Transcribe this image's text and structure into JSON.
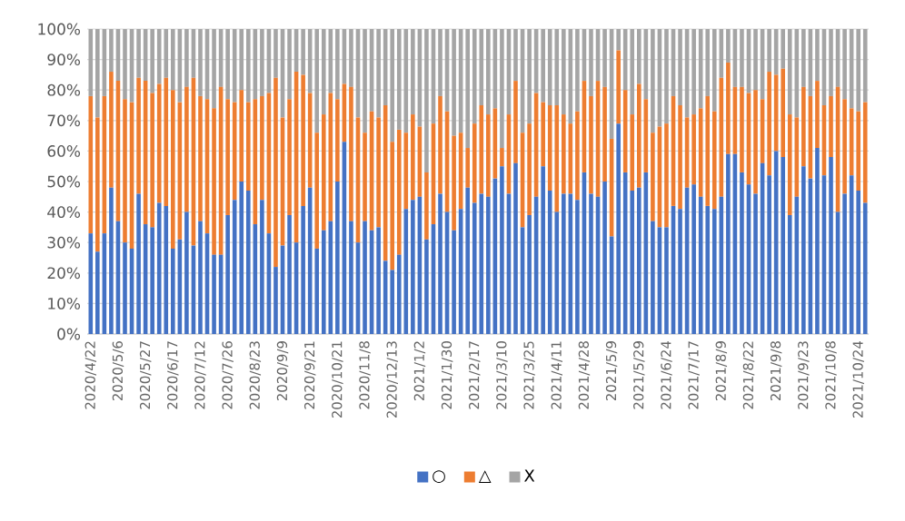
{
  "chart_data": {
    "type": "bar",
    "stacked": true,
    "grid": "y",
    "legend": "bottom",
    "categories": [
      "2020/4/22",
      null,
      null,
      null,
      "2020/5/6",
      null,
      null,
      null,
      "2020/5/27",
      null,
      null,
      null,
      "2020/6/17",
      null,
      null,
      null,
      "2020/7/12",
      null,
      null,
      null,
      "2020/7/26",
      null,
      null,
      null,
      "2020/8/23",
      null,
      null,
      null,
      "2020/9/9",
      null,
      null,
      null,
      "2020/9/21",
      null,
      null,
      null,
      "2020/10/21",
      null,
      null,
      null,
      "2020/11/8",
      null,
      null,
      null,
      "2020/12/13",
      null,
      null,
      null,
      "2021/1/2",
      null,
      null,
      null,
      "2021/1/30",
      null,
      null,
      null,
      "2021/2/17",
      null,
      null,
      null,
      "2021/3/10",
      null,
      null,
      null,
      "2021/3/25",
      null,
      null,
      null,
      "2021/4/11",
      null,
      null,
      null,
      "2021/4/28",
      null,
      null,
      null,
      "2021/5/9",
      null,
      null,
      null,
      "2021/5/29",
      null,
      null,
      null,
      "2021/6/24",
      null,
      null,
      null,
      "2021/7/17",
      null,
      null,
      null,
      "2021/8/9",
      null,
      null,
      null,
      "2021/8/22",
      null,
      null,
      null,
      "2021/9/8",
      null,
      null,
      null,
      "2021/9/23",
      null,
      null,
      null,
      "2021/10/8",
      null,
      null,
      null,
      "2021/10/24",
      null
    ],
    "ylim": [
      0,
      100
    ],
    "yticks": [
      {
        "value": 0,
        "label": "0%"
      },
      {
        "value": 10,
        "label": "10%"
      },
      {
        "value": 20,
        "label": "20%"
      },
      {
        "value": 30,
        "label": "30%"
      },
      {
        "value": 40,
        "label": "40%"
      },
      {
        "value": 50,
        "label": "50%"
      },
      {
        "value": 60,
        "label": "60%"
      },
      {
        "value": 70,
        "label": "70%"
      },
      {
        "value": 80,
        "label": "80%"
      },
      {
        "value": 90,
        "label": "90%"
      },
      {
        "value": 100,
        "label": "100%"
      }
    ],
    "series": [
      {
        "name": "○",
        "color": "#4472c4",
        "values": [
          33,
          27,
          33,
          48,
          37,
          30,
          28,
          46,
          36,
          35,
          43,
          42,
          28,
          31,
          40,
          29,
          37,
          33,
          26,
          26,
          39,
          44,
          50,
          47,
          36,
          44,
          33,
          22,
          29,
          39,
          30,
          42,
          48,
          28,
          34,
          37,
          50,
          63,
          37,
          30,
          37,
          34,
          35,
          24,
          21,
          26,
          41,
          44,
          45,
          31,
          36,
          46,
          40,
          34,
          41,
          48,
          43,
          46,
          45,
          51,
          55,
          46,
          56,
          35,
          39,
          45,
          55,
          47,
          40,
          46,
          46,
          44,
          53,
          46,
          45,
          50,
          32,
          69,
          53,
          47,
          48,
          53,
          37,
          35,
          35,
          42,
          41,
          48,
          49,
          45,
          42,
          41,
          45,
          59,
          59,
          53,
          49,
          46,
          56,
          52,
          60,
          58,
          39,
          45,
          55,
          51,
          61,
          52,
          58,
          40,
          46,
          52,
          47,
          43
        ]
      },
      {
        "name": "△",
        "color": "#ed7d31",
        "values": [
          45,
          44,
          45,
          38,
          46,
          47,
          48,
          38,
          47,
          44,
          39,
          42,
          52,
          45,
          41,
          55,
          41,
          44,
          48,
          55,
          38,
          32,
          30,
          29,
          41,
          34,
          46,
          62,
          42,
          38,
          56,
          43,
          31,
          38,
          38,
          42,
          27,
          19,
          44,
          41,
          29,
          39,
          36,
          51,
          42,
          41,
          25,
          28,
          23,
          22,
          33,
          32,
          33,
          31,
          25,
          13,
          26,
          29,
          27,
          23,
          6,
          26,
          27,
          31,
          30,
          34,
          21,
          28,
          35,
          26,
          23,
          29,
          30,
          32,
          38,
          31,
          32,
          24,
          27,
          25,
          34,
          24,
          29,
          33,
          34,
          36,
          34,
          23,
          23,
          29,
          36,
          32,
          39,
          30,
          22,
          28,
          30,
          34,
          21,
          34,
          25,
          29,
          33,
          26,
          26,
          27,
          22,
          23,
          20,
          41,
          31,
          22,
          26,
          33
        ]
      },
      {
        "name": "X",
        "color": "#a5a5a5",
        "values": [
          22,
          29,
          22,
          14,
          17,
          23,
          24,
          16,
          17,
          21,
          18,
          16,
          20,
          24,
          19,
          16,
          22,
          23,
          26,
          19,
          23,
          24,
          20,
          24,
          23,
          22,
          21,
          16,
          29,
          23,
          14,
          15,
          21,
          34,
          28,
          21,
          23,
          18,
          19,
          29,
          34,
          27,
          29,
          25,
          37,
          33,
          34,
          28,
          32,
          47,
          31,
          22,
          27,
          35,
          34,
          39,
          31,
          25,
          28,
          26,
          39,
          28,
          17,
          34,
          31,
          21,
          24,
          25,
          25,
          28,
          31,
          27,
          17,
          22,
          17,
          19,
          36,
          7,
          20,
          28,
          18,
          23,
          34,
          32,
          31,
          22,
          25,
          29,
          28,
          26,
          22,
          27,
          16,
          11,
          19,
          19,
          21,
          20,
          23,
          14,
          15,
          13,
          28,
          29,
          19,
          22,
          17,
          25,
          22,
          19,
          23,
          26,
          27,
          24
        ]
      }
    ]
  }
}
